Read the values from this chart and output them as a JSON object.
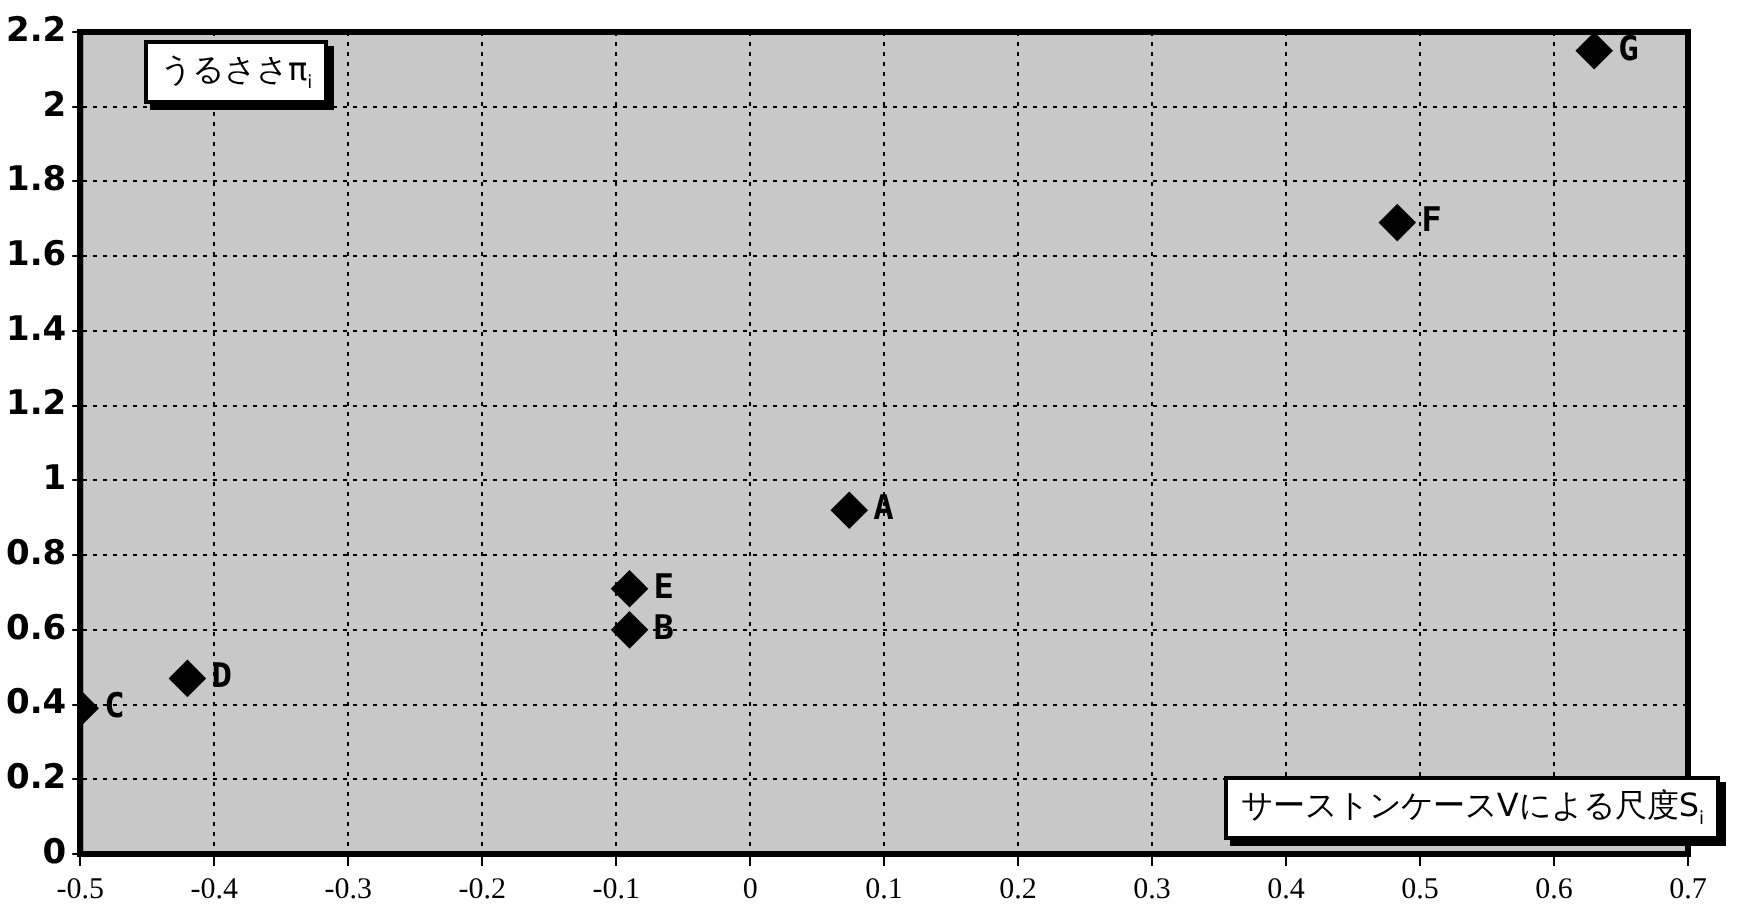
{
  "chart_data": {
    "type": "scatter",
    "xlabel": "サーストンケースVによる尺度S$_{i}$",
    "ylabel": "うるささπ$_{i}$",
    "x": [
      0.074,
      -0.09,
      -0.5,
      -0.42,
      -0.09,
      0.483,
      0.63
    ],
    "series": [
      {
        "color": "#000000",
        "values": [
          0.92,
          0.6,
          0.39,
          0.47,
          0.71,
          1.69,
          2.15
        ]
      }
    ],
    "xlim": [
      -0.5,
      0.7
    ],
    "xticks": [
      {
        "value": -0.5,
        "label": "-0.5"
      },
      {
        "value": -0.4,
        "label": "-0.4"
      },
      {
        "value": -0.3,
        "label": "-0.3"
      },
      {
        "value": -0.2,
        "label": "-0.2"
      },
      {
        "value": -0.1,
        "label": "-0.1"
      },
      0,
      0.1,
      0.2,
      0.3,
      0.4,
      0.5,
      0.6,
      0.7
    ],
    "ylim": [
      0,
      2.2
    ],
    "yticks": [
      0,
      0.2,
      0.4,
      0.6,
      0.8,
      1,
      1.2,
      1.4,
      1.6,
      1.8,
      2,
      2.2
    ],
    "annotations": [
      {
        "text": "A",
        "x": 0.074,
        "y": 0.92
      },
      {
        "text": "B",
        "x": -0.09,
        "y": 0.6
      },
      {
        "text": "C",
        "x": -0.5,
        "y": 0.39
      },
      {
        "text": "D",
        "x": -0.42,
        "y": 0.47
      },
      {
        "text": "E",
        "x": -0.09,
        "y": 0.71
      },
      {
        "text": "F",
        "x": 0.483,
        "y": 1.69
      },
      {
        "text": "G",
        "x": 0.63,
        "y": 2.15
      }
    ],
    "grid": true,
    "legend": false,
    "marker": "diamond"
  }
}
